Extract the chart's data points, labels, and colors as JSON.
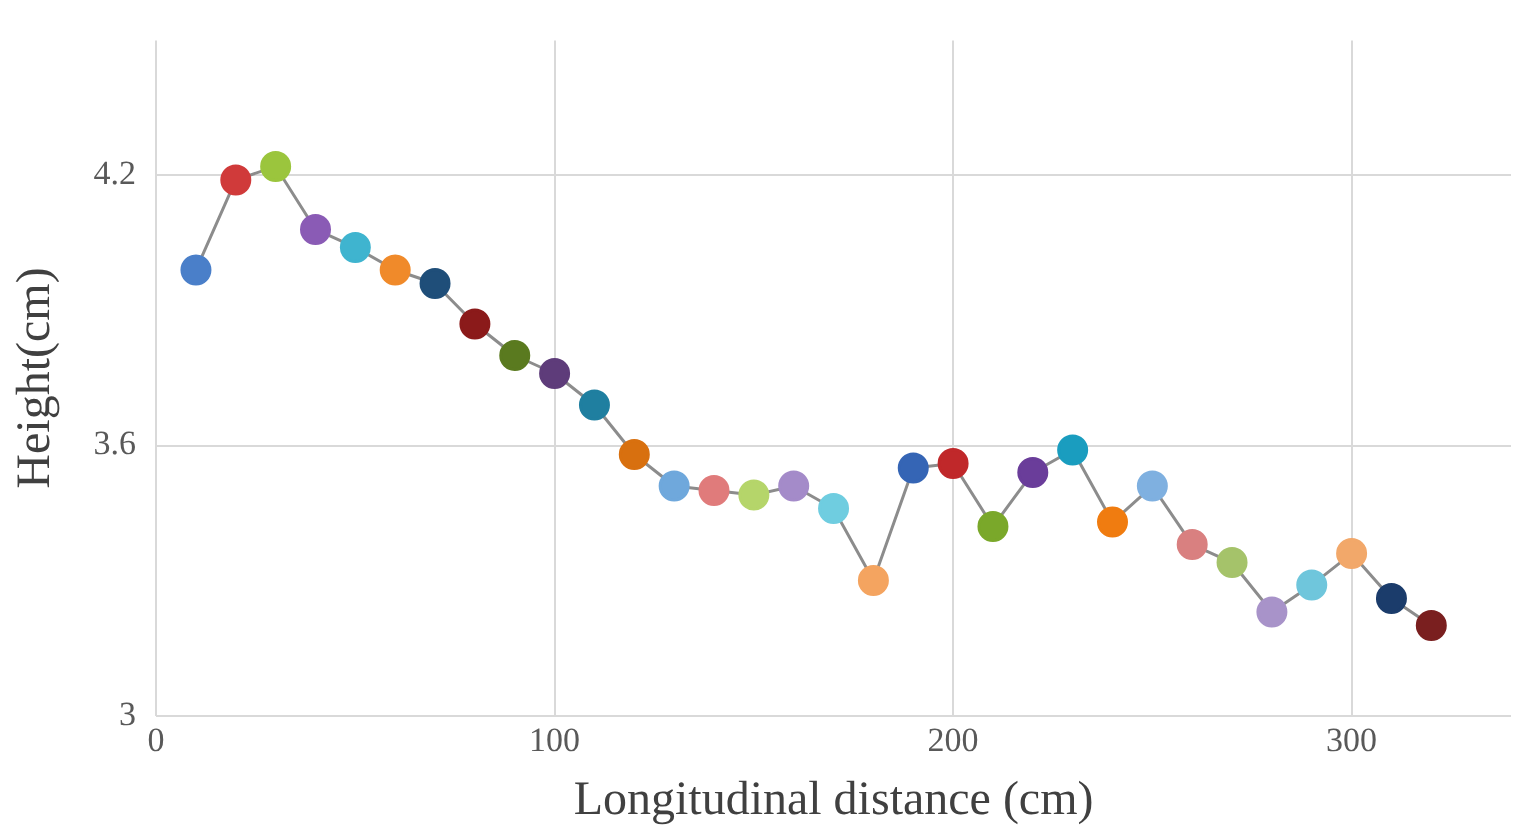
{
  "chart_data": {
    "type": "line",
    "xlabel": "Longitudinal distance (cm)",
    "ylabel": "Height(cm)",
    "x": [
      10,
      20,
      30,
      40,
      50,
      60,
      70,
      80,
      90,
      100,
      110,
      120,
      130,
      140,
      150,
      160,
      170,
      180,
      190,
      200,
      210,
      220,
      230,
      240,
      250,
      260,
      270,
      280,
      290,
      300,
      310,
      320
    ],
    "series": [
      {
        "color": "#8c8c8c",
        "values": [
          3.99,
          4.19,
          4.22,
          4.08,
          4.04,
          3.99,
          3.96,
          3.87,
          3.8,
          3.76,
          3.69,
          3.58,
          3.51,
          3.5,
          3.49,
          3.51,
          3.46,
          3.3,
          3.55,
          3.56,
          3.42,
          3.54,
          3.59,
          3.43,
          3.51,
          3.38,
          3.34,
          3.23,
          3.29,
          3.36,
          3.26,
          3.2
        ],
        "colors": [
          "#4a7fc9",
          "#d03a3a",
          "#9bc53d",
          "#8a5bb5",
          "#3fb4cf",
          "#f08a2a",
          "#1f4e79",
          "#8b1a1a",
          "#5a7a1f",
          "#5e3c7a",
          "#1f7fa0",
          "#d8700f",
          "#6fa8dc",
          "#e07b7b",
          "#b5d56a",
          "#a48bc9",
          "#6fcde0",
          "#f4a460",
          "#3565b5",
          "#c0282a",
          "#7aa82a",
          "#6a3d9a",
          "#1a9dbf",
          "#f07c10",
          "#7fb0e0",
          "#d98080",
          "#a5c36a",
          "#a893c9",
          "#6fc6dc",
          "#f2a86a",
          "#1b3c6b",
          "#7a1f1f"
        ]
      }
    ],
    "xlim": [
      0,
      340
    ],
    "xticks": [
      0,
      100,
      200,
      300
    ],
    "ylim": [
      3,
      4.5
    ],
    "yticks": [
      3,
      3.6,
      4.2
    ],
    "grid": true,
    "marker": "circle"
  }
}
